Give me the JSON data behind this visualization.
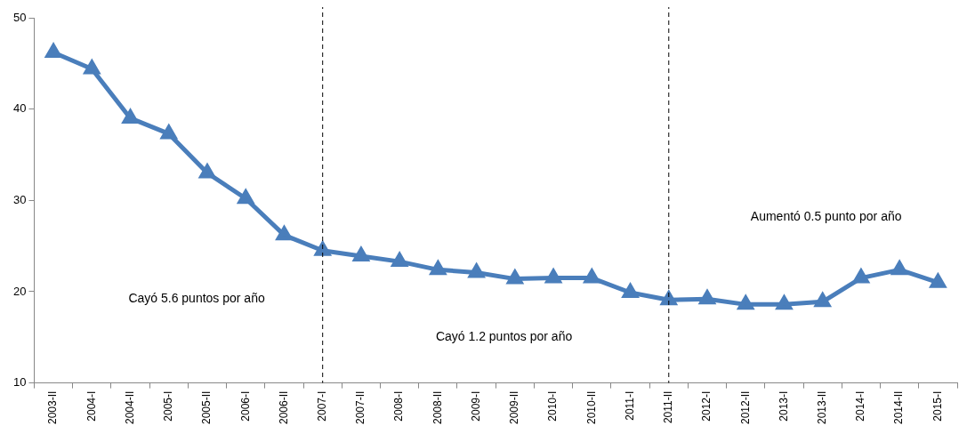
{
  "chart_data": {
    "type": "line",
    "categories": [
      "2003-II",
      "2004-I",
      "2004-II",
      "2005-I",
      "2005-II",
      "2006-I",
      "2006-II",
      "2007-I",
      "2007-II",
      "2008-I",
      "2008-II",
      "2009-I",
      "2009-II",
      "2010-I",
      "2010-II",
      "2011-I",
      "2011-II",
      "2012-I",
      "2012-II",
      "2013-I",
      "2013-II",
      "2014-I",
      "2014-II",
      "2015-I"
    ],
    "series": [
      {
        "color": "#4a7ebb",
        "values": [
          46.2,
          44.4,
          39.0,
          37.3,
          33.0,
          30.2,
          26.2,
          24.5,
          23.9,
          23.3,
          22.4,
          22.1,
          21.4,
          21.5,
          21.5,
          19.9,
          19.1,
          19.2,
          18.6,
          18.6,
          18.9,
          21.5,
          22.4,
          21.0
        ]
      }
    ],
    "ylim": [
      10,
      50
    ],
    "yticks": [
      10,
      20,
      30,
      40,
      50
    ],
    "grid": false,
    "legend": false,
    "marker": "triangle",
    "line_style": "solid",
    "ref_lines": [
      {
        "axis": "x",
        "value": "2007-I",
        "color": "#000000",
        "line_style": "dashed"
      },
      {
        "axis": "x",
        "value": "2011-II",
        "color": "#000000",
        "line_style": "dashed"
      }
    ],
    "annotations": [
      "Cayó 5.6 puntos por año",
      "Cayó 1.2 puntos por año",
      "Aumentó 0.5 punto por año"
    ]
  }
}
